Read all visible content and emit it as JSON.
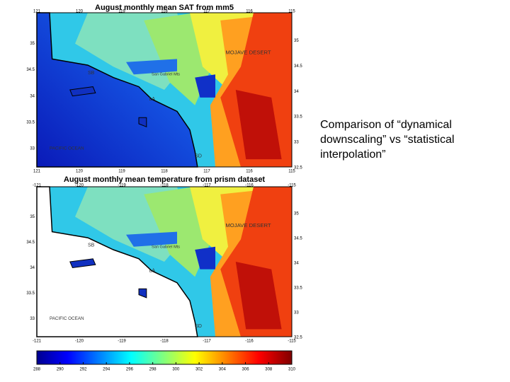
{
  "caption": "Comparison of “dynamical downscaling” vs “statistical interpolation”",
  "maps": [
    {
      "title": "August monthly mean SAT from mm5",
      "top_ticks": [
        "121",
        "120",
        "119",
        "118",
        "117",
        "116",
        "115"
      ],
      "bottom_ticks": [
        "121",
        "120",
        "119",
        "118",
        "117",
        "116",
        "115"
      ],
      "left_ticks": [
        "35",
        "34.5",
        "34",
        "33.5",
        "33"
      ],
      "right_ticks": [
        "35",
        "34.5",
        "34",
        "33.5",
        "33",
        "32.5"
      ],
      "labels": [
        "MOJAVE DESERT",
        "SB",
        "LA",
        "SD",
        "PACIFIC OCEAN",
        "San Gabriel Mts"
      ]
    },
    {
      "title": "August monthly mean temperature from prism dataset",
      "top_ticks": [
        "-121",
        "-120",
        "-119",
        "-118",
        "-117",
        "-116",
        "-115"
      ],
      "bottom_ticks": [
        "-121",
        "-120",
        "-119",
        "-118",
        "-117",
        "-116",
        "-115"
      ],
      "left_ticks": [
        "35",
        "34.5",
        "34",
        "33.5",
        "33"
      ],
      "right_ticks": [
        "35",
        "34.5",
        "34",
        "33.5",
        "33",
        "32.5"
      ],
      "labels": [
        "MOJAVE DESERT",
        "SB",
        "LA",
        "SD",
        "PACIFIC OCEAN",
        "San Gabriel Mts"
      ]
    }
  ],
  "colorbar": {
    "ticks": [
      "288",
      "290",
      "292",
      "294",
      "296",
      "298",
      "300",
      "302",
      "304",
      "306",
      "308",
      "310"
    ]
  }
}
